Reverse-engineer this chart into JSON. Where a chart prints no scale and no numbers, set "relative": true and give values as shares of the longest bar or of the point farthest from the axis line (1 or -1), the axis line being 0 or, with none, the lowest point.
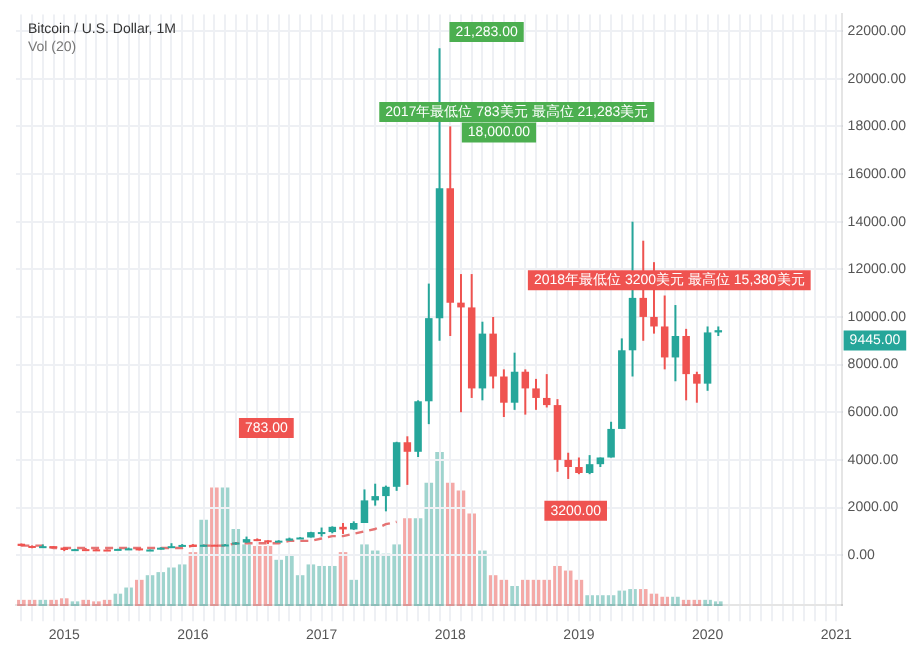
{
  "chart_data": [
    {
      "type": "candlestick",
      "title": "Bitcoin / U.S. Dollar, 1M",
      "subtitle": "Vol (20)",
      "categories": [
        null,
        null,
        null,
        null,
        "2015",
        null,
        null,
        null,
        null,
        null,
        null,
        null,
        null,
        null,
        null,
        null,
        "2016",
        null,
        null,
        null,
        null,
        null,
        null,
        null,
        null,
        null,
        null,
        null,
        "2017",
        null,
        null,
        null,
        null,
        null,
        null,
        null,
        null,
        null,
        null,
        null,
        "2018",
        null,
        null,
        null,
        null,
        null,
        null,
        null,
        null,
        null,
        null,
        null,
        "2019",
        null,
        null,
        null,
        null,
        null,
        null,
        null,
        null,
        null,
        null,
        null,
        "2020",
        null,
        null,
        null,
        null,
        null,
        null,
        null,
        null,
        null,
        null,
        null,
        "2021"
      ],
      "ohlc": [
        [
          480,
          490,
          370,
          387
        ],
        [
          387,
          410,
          290,
          338
        ],
        [
          338,
          450,
          320,
          378
        ],
        [
          378,
          380,
          310,
          320
        ],
        [
          320,
          320,
          170,
          217
        ],
        [
          217,
          265,
          212,
          254
        ],
        [
          254,
          300,
          236,
          244
        ],
        [
          244,
          261,
          215,
          236
        ],
        [
          236,
          247,
          225,
          230
        ],
        [
          230,
          268,
          221,
          263
        ],
        [
          263,
          317,
          253,
          284
        ],
        [
          284,
          285,
          198,
          230
        ],
        [
          230,
          245,
          225,
          236
        ],
        [
          236,
          334,
          236,
          314
        ],
        [
          314,
          502,
          300,
          377
        ],
        [
          377,
          465,
          350,
          430
        ],
        [
          430,
          462,
          350,
          368
        ],
        [
          368,
          447,
          366,
          437
        ],
        [
          437,
          439,
          394,
          416
        ],
        [
          416,
          467,
          414,
          448
        ],
        [
          448,
          550,
          437,
          531
        ],
        [
          531,
          780,
          521,
          673
        ],
        [
          673,
          703,
          604,
          624
        ],
        [
          624,
          626,
          471,
          573
        ],
        [
          573,
          628,
          571,
          609
        ],
        [
          609,
          735,
          606,
          701
        ],
        [
          701,
          757,
          687,
          742
        ],
        [
          742,
          980,
          742,
          966
        ],
        [
          966,
          1160,
          783,
          970
        ],
        [
          970,
          1210,
          920,
          1190
        ],
        [
          1190,
          1350,
          890,
          1080
        ],
        [
          1080,
          1420,
          1060,
          1350
        ],
        [
          1350,
          2760,
          1350,
          2300
        ],
        [
          2300,
          3000,
          2080,
          2480
        ],
        [
          2480,
          2920,
          1840,
          2870
        ],
        [
          2870,
          4760,
          2700,
          4740
        ],
        [
          4740,
          4990,
          2950,
          4340
        ],
        [
          4340,
          6500,
          4120,
          6460
        ],
        [
          6460,
          11400,
          5500,
          9950
        ],
        [
          9950,
          21283,
          9000,
          15400
        ],
        [
          15400,
          18000,
          9200,
          10600
        ],
        [
          10600,
          11800,
          6000,
          10400
        ],
        [
          10400,
          11800,
          6600,
          7000
        ],
        [
          7000,
          9800,
          6500,
          9300
        ],
        [
          9300,
          10000,
          7000,
          7500
        ],
        [
          7500,
          7800,
          5800,
          6400
        ],
        [
          6400,
          8500,
          6100,
          7700
        ],
        [
          7700,
          7800,
          5900,
          7000
        ],
        [
          7000,
          7400,
          6100,
          6600
        ],
        [
          6600,
          7600,
          6200,
          6300
        ],
        [
          6300,
          6550,
          3500,
          4000
        ],
        [
          4000,
          4300,
          3200,
          3700
        ],
        [
          3700,
          4100,
          3400,
          3450
        ],
        [
          3450,
          4200,
          3400,
          3820
        ],
        [
          3820,
          4100,
          3700,
          4100
        ],
        [
          4100,
          5600,
          4100,
          5300
        ],
        [
          5300,
          9100,
          5300,
          8600
        ],
        [
          8600,
          14000,
          7500,
          10800
        ],
        [
          10800,
          13200,
          9000,
          10000
        ],
        [
          10000,
          12300,
          9300,
          9600
        ],
        [
          9600,
          10900,
          7800,
          8300
        ],
        [
          8300,
          10500,
          7300,
          9200
        ],
        [
          9200,
          9500,
          6500,
          7600
        ],
        [
          7600,
          7700,
          6400,
          7200
        ],
        [
          7200,
          9600,
          6900,
          9350
        ],
        [
          9350,
          9600,
          9200,
          9445
        ],
        null,
        null,
        null,
        null,
        null,
        null,
        null,
        null,
        null,
        null,
        null
      ],
      "colors": [
        "#ef5350",
        "#ef5350",
        "#26a69a",
        "#ef5350",
        "#ef5350",
        "#26a69a",
        "#ef5350",
        "#ef5350",
        "#ef5350",
        "#26a69a",
        "#26a69a",
        "#ef5350",
        "#26a69a",
        "#26a69a",
        "#26a69a",
        "#26a69a",
        "#ef5350",
        "#26a69a",
        "#ef5350",
        "#26a69a",
        "#26a69a",
        "#26a69a",
        "#ef5350",
        "#ef5350",
        "#26a69a",
        "#26a69a",
        "#26a69a",
        "#26a69a",
        "#26a69a",
        "#26a69a",
        "#ef5350",
        "#26a69a",
        "#26a69a",
        "#26a69a",
        "#26a69a",
        "#26a69a",
        "#ef5350",
        "#26a69a",
        "#26a69a",
        "#26a69a",
        "#ef5350",
        "#ef5350",
        "#ef5350",
        "#26a69a",
        "#ef5350",
        "#ef5350",
        "#26a69a",
        "#ef5350",
        "#ef5350",
        "#ef5350",
        "#ef5350",
        "#ef5350",
        "#ef5350",
        "#26a69a",
        "#26a69a",
        "#26a69a",
        "#26a69a",
        "#26a69a",
        "#ef5350",
        "#ef5350",
        "#ef5350",
        "#26a69a",
        "#ef5350",
        "#ef5350",
        "#26a69a",
        "#26a69a",
        null,
        null,
        null,
        null,
        null,
        null,
        null,
        null,
        null,
        null,
        null
      ],
      "series": [
        {
          "type": "line",
          "color": "#e57373",
          "line_style": "dashed",
          "values": [
            400,
            400,
            400,
            300,
            300,
            300,
            300,
            300,
            300,
            300,
            300,
            300,
            300,
            300,
            300,
            300,
            400,
            400,
            400,
            400,
            500,
            500,
            500,
            500,
            500,
            600,
            600,
            600,
            700,
            800,
            800,
            900,
            1000,
            1100,
            1300,
            1400,
            null,
            null,
            null,
            null,
            null,
            null,
            null,
            null,
            null,
            null,
            null,
            null,
            null,
            null,
            null,
            null,
            null,
            null,
            null,
            null,
            null,
            null,
            null,
            null,
            null,
            null,
            null,
            null,
            null,
            null,
            null,
            null,
            null,
            null,
            null,
            null,
            null,
            null,
            null,
            null,
            null
          ]
        }
      ],
      "ylim": [
        -2100,
        22700
      ],
      "yticks": [
        {
          "value": 0,
          "label": "0.00"
        },
        {
          "value": 2000,
          "label": "2000.00"
        },
        {
          "value": 4000,
          "label": "4000.00"
        },
        {
          "value": 6000,
          "label": "6000.00"
        },
        {
          "value": 8000,
          "label": "8000.00"
        },
        {
          "value": 10000,
          "label": "10000.00"
        },
        {
          "value": 12000,
          "label": "12000.00"
        },
        {
          "value": 14000,
          "label": "14000.00"
        },
        {
          "value": 16000,
          "label": "16000.00"
        },
        {
          "value": 18000,
          "label": "18000.00"
        },
        {
          "value": 20000,
          "label": "20000.00"
        },
        {
          "value": 22000,
          "label": "22000.00"
        }
      ],
      "grid": true,
      "annotations": [
        "21,283.00",
        "2017年最低位 783美元 最高位 21,283美元",
        "18,000.00",
        "2018年最低位 3200美元 最高位 15,380美元",
        "783.00",
        "3200.00",
        "9445.00"
      ]
    },
    {
      "type": "bar",
      "relative": true,
      "tick_labels": false,
      "categories": [
        null,
        null,
        null,
        null,
        null,
        null,
        null,
        null,
        null,
        null,
        null,
        null,
        null,
        null,
        null,
        null,
        null,
        null,
        null,
        null,
        null,
        null,
        null,
        null,
        null,
        null,
        null,
        null,
        null,
        null,
        null,
        null,
        null,
        null,
        null,
        null,
        null,
        null,
        null,
        null,
        null,
        null,
        null,
        null,
        null,
        null,
        null,
        null,
        null,
        null,
        null,
        null,
        null,
        null,
        null,
        null,
        null,
        null,
        null,
        null,
        null,
        null,
        null,
        null,
        null,
        null,
        null,
        null,
        null,
        null,
        null,
        null,
        null,
        null,
        null,
        null,
        null
      ],
      "values": [
        0.04,
        0.04,
        0.04,
        0.04,
        0.05,
        0.03,
        0.04,
        0.03,
        0.04,
        0.08,
        0.12,
        0.17,
        0.2,
        0.22,
        0.25,
        0.27,
        0.35,
        0.56,
        0.77,
        0.77,
        0.5,
        0.4,
        0.39,
        0.39,
        0.3,
        0.33,
        0.2,
        0.27,
        0.26,
        0.26,
        0.35,
        0.17,
        0.4,
        0.36,
        0.34,
        0.4,
        0.57,
        0.57,
        0.8,
        1,
        0.8,
        0.75,
        0.6,
        0.36,
        0.2,
        0.17,
        0.13,
        0.17,
        0.17,
        0.17,
        0.26,
        0.23,
        0.17,
        0.07,
        0.07,
        0.07,
        0.1,
        0.11,
        0.11,
        0.08,
        0.06,
        0.06,
        0.04,
        0.04,
        0.04,
        0.03,
        null,
        null,
        null,
        null,
        null,
        null,
        null,
        null,
        null,
        null,
        null
      ],
      "colors": [
        "#f4a9a7",
        "#f4a9a7",
        "#9fd4ce",
        "#f4a9a7",
        "#f4a9a7",
        "#9fd4ce",
        "#f4a9a7",
        "#f4a9a7",
        "#f4a9a7",
        "#9fd4ce",
        "#9fd4ce",
        "#f4a9a7",
        "#9fd4ce",
        "#9fd4ce",
        "#9fd4ce",
        "#9fd4ce",
        "#f4a9a7",
        "#9fd4ce",
        "#f4a9a7",
        "#9fd4ce",
        "#9fd4ce",
        "#9fd4ce",
        "#f4a9a7",
        "#f4a9a7",
        "#9fd4ce",
        "#9fd4ce",
        "#9fd4ce",
        "#9fd4ce",
        "#9fd4ce",
        "#9fd4ce",
        "#f4a9a7",
        "#9fd4ce",
        "#9fd4ce",
        "#9fd4ce",
        "#9fd4ce",
        "#9fd4ce",
        "#f4a9a7",
        "#9fd4ce",
        "#9fd4ce",
        "#9fd4ce",
        "#f4a9a7",
        "#f4a9a7",
        "#f4a9a7",
        "#9fd4ce",
        "#f4a9a7",
        "#f4a9a7",
        "#9fd4ce",
        "#f4a9a7",
        "#f4a9a7",
        "#f4a9a7",
        "#f4a9a7",
        "#f4a9a7",
        "#f4a9a7",
        "#9fd4ce",
        "#9fd4ce",
        "#9fd4ce",
        "#9fd4ce",
        "#9fd4ce",
        "#f4a9a7",
        "#f4a9a7",
        "#f4a9a7",
        "#9fd4ce",
        "#f4a9a7",
        "#f4a9a7",
        "#9fd4ce",
        "#9fd4ce",
        null,
        null,
        null,
        null,
        null,
        null,
        null,
        null,
        null,
        null,
        null
      ]
    }
  ]
}
